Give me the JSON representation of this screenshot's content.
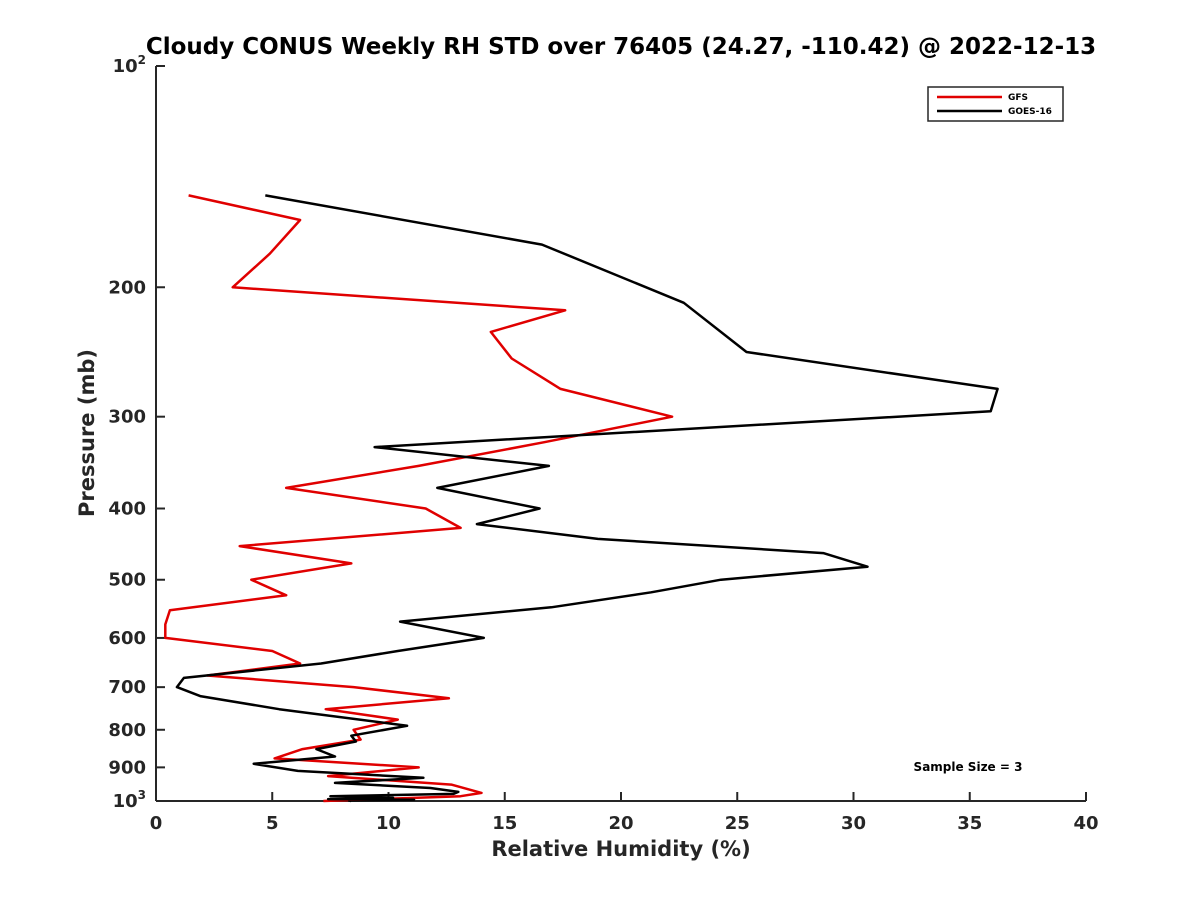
{
  "chart_data": {
    "type": "line",
    "title": "Cloudy CONUS Weekly RH STD over 76405 (24.27, -110.42) @ 2022-12-13",
    "xlabel": "Relative Humidity (%)",
    "ylabel": "Pressure (mb)",
    "xlim": [
      0,
      40
    ],
    "ylim": [
      100,
      1000
    ],
    "y_scale": "log",
    "y_reversed": true,
    "grid": false,
    "legend_position": "top-right",
    "x_ticks": [
      0,
      5,
      10,
      15,
      20,
      25,
      30,
      35,
      40
    ],
    "y_ticks": [
      {
        "value": 100,
        "base": "10",
        "exp": "2"
      },
      {
        "value": 200,
        "label": "200"
      },
      {
        "value": 300,
        "label": "300"
      },
      {
        "value": 400,
        "label": "400"
      },
      {
        "value": 500,
        "label": "500"
      },
      {
        "value": 600,
        "label": "600"
      },
      {
        "value": 700,
        "label": "700"
      },
      {
        "value": 800,
        "label": "800"
      },
      {
        "value": 900,
        "label": "900"
      },
      {
        "value": 1000,
        "base": "10",
        "exp": "3"
      }
    ],
    "annotation": "Sample Size = 3",
    "series": [
      {
        "name": "GFS",
        "color": "#e00000",
        "points": [
          [
            1.4,
            150
          ],
          [
            6.2,
            162
          ],
          [
            4.9,
            180
          ],
          [
            3.3,
            200
          ],
          [
            17.6,
            215
          ],
          [
            14.4,
            230
          ],
          [
            15.3,
            250
          ],
          [
            17.4,
            275
          ],
          [
            22.2,
            300
          ],
          [
            16.7,
            325
          ],
          [
            11.3,
            350
          ],
          [
            5.6,
            375
          ],
          [
            11.6,
            400
          ],
          [
            13.1,
            425
          ],
          [
            3.6,
            450
          ],
          [
            8.4,
            475
          ],
          [
            4.1,
            500
          ],
          [
            5.6,
            525
          ],
          [
            0.6,
            550
          ],
          [
            0.4,
            575
          ],
          [
            0.4,
            600
          ],
          [
            5.0,
            625
          ],
          [
            6.2,
            650
          ],
          [
            2.2,
            675
          ],
          [
            8.5,
            700
          ],
          [
            12.6,
            725
          ],
          [
            7.3,
            750
          ],
          [
            10.4,
            775
          ],
          [
            8.5,
            800
          ],
          [
            8.8,
            825
          ],
          [
            6.3,
            850
          ],
          [
            5.1,
            875
          ],
          [
            11.3,
            900
          ],
          [
            7.4,
            925
          ],
          [
            12.7,
            950
          ],
          [
            14.0,
            975
          ],
          [
            13.1,
            985
          ],
          [
            7.2,
            1000
          ]
        ]
      },
      {
        "name": "GOES-16",
        "color": "#000000",
        "points": [
          [
            4.7,
            150
          ],
          [
            16.6,
            175
          ],
          [
            22.7,
            210
          ],
          [
            25.4,
            245
          ],
          [
            36.2,
            275
          ],
          [
            35.9,
            295
          ],
          [
            9.4,
            330
          ],
          [
            16.9,
            350
          ],
          [
            12.1,
            375
          ],
          [
            16.5,
            400
          ],
          [
            13.8,
            420
          ],
          [
            19.0,
            440
          ],
          [
            28.7,
            460
          ],
          [
            30.6,
            480
          ],
          [
            24.3,
            500
          ],
          [
            21.3,
            520
          ],
          [
            17.0,
            545
          ],
          [
            10.5,
            570
          ],
          [
            14.1,
            600
          ],
          [
            10.4,
            625
          ],
          [
            7.1,
            650
          ],
          [
            1.2,
            680
          ],
          [
            0.9,
            700
          ],
          [
            1.9,
            720
          ],
          [
            5.3,
            750
          ],
          [
            10.8,
            790
          ],
          [
            8.4,
            815
          ],
          [
            8.6,
            830
          ],
          [
            6.9,
            850
          ],
          [
            7.7,
            870
          ],
          [
            4.2,
            890
          ],
          [
            6.1,
            910
          ],
          [
            11.5,
            930
          ],
          [
            7.7,
            945
          ],
          [
            11.8,
            960
          ],
          [
            13.0,
            972
          ],
          [
            12.8,
            978
          ],
          [
            7.5,
            985
          ],
          [
            10.2,
            990
          ],
          [
            7.4,
            994
          ],
          [
            11.1,
            996
          ],
          [
            8.3,
            998
          ],
          [
            8.4,
            1000
          ]
        ]
      }
    ]
  }
}
